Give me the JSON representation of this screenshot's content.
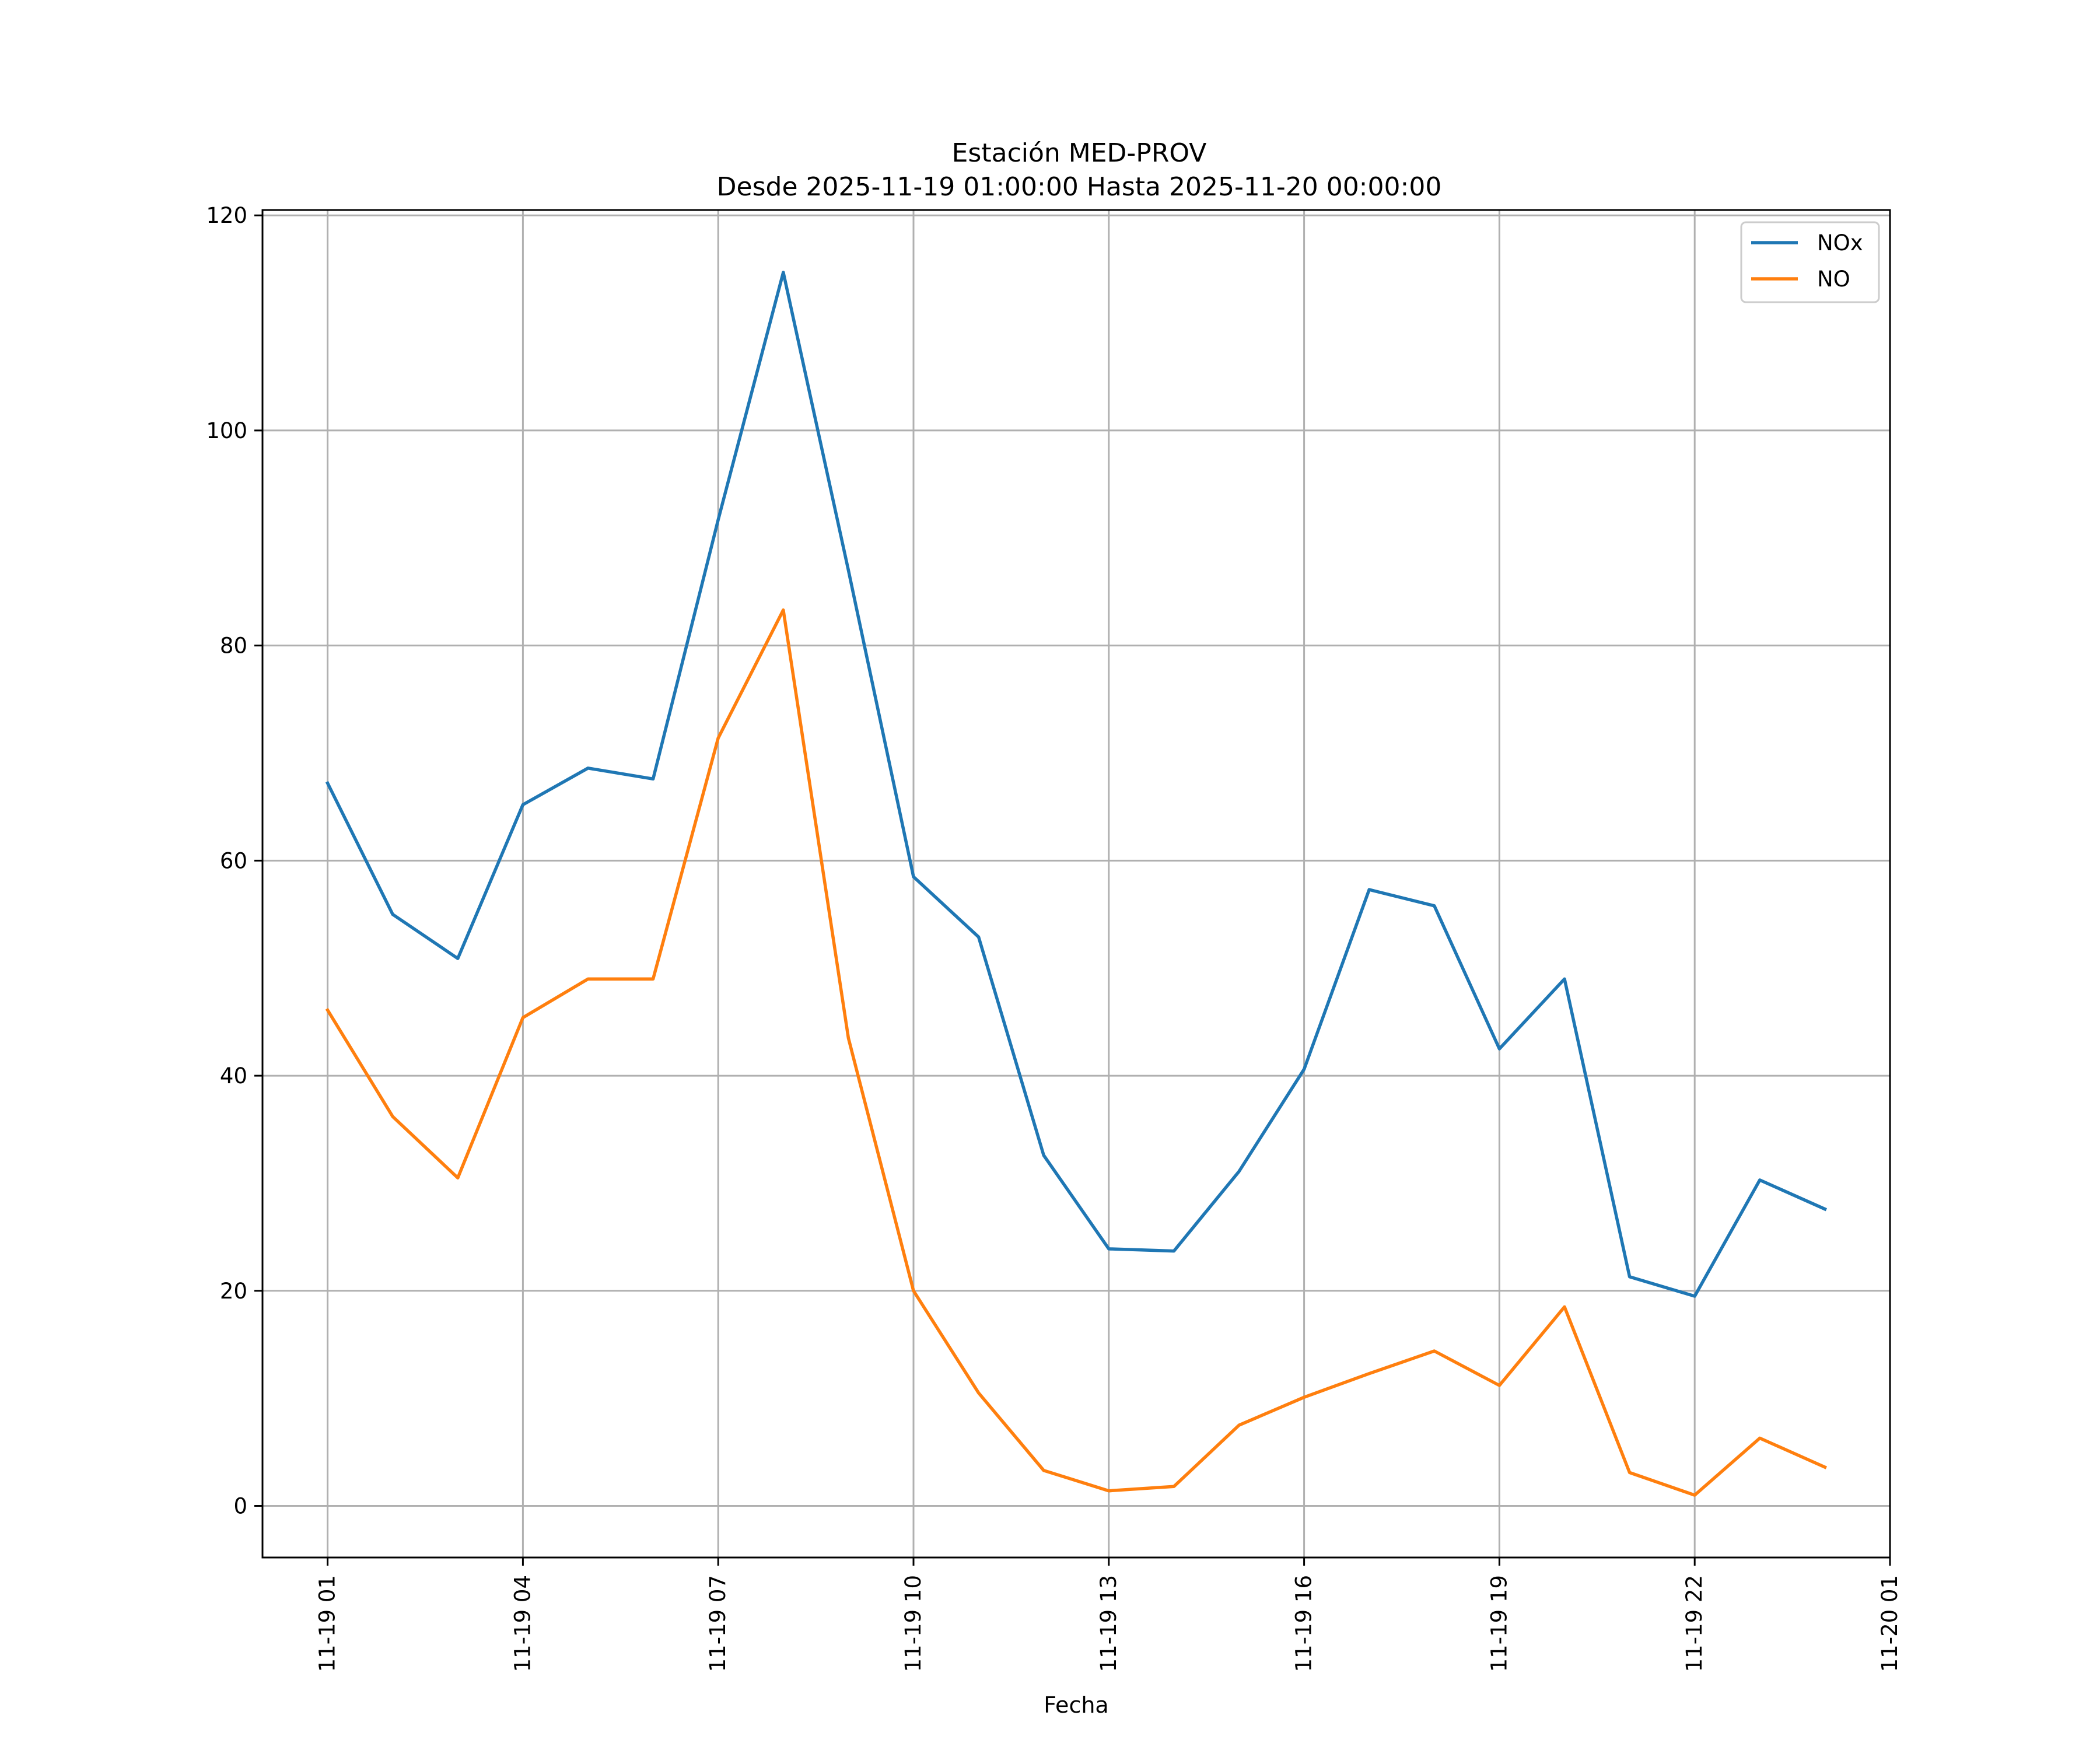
{
  "chart_data": {
    "type": "line",
    "title": [
      "Estación MED-PROV",
      "Desde 2025-11-19 01:00:00 Hasta 2025-11-20 00:00:00"
    ],
    "xlabel": "Fecha",
    "ylabel": "",
    "x": [
      "2025-11-19 01:00",
      "2025-11-19 02:00",
      "2025-11-19 03:00",
      "2025-11-19 04:00",
      "2025-11-19 05:00",
      "2025-11-19 06:00",
      "2025-11-19 07:00",
      "2025-11-19 08:00",
      "2025-11-19 09:00",
      "2025-11-19 10:00",
      "2025-11-19 11:00",
      "2025-11-19 12:00",
      "2025-11-19 13:00",
      "2025-11-19 14:00",
      "2025-11-19 15:00",
      "2025-11-19 16:00",
      "2025-11-19 17:00",
      "2025-11-19 18:00",
      "2025-11-19 19:00",
      "2025-11-19 20:00",
      "2025-11-19 21:00",
      "2025-11-19 22:00",
      "2025-11-19 23:00",
      "2025-11-20 00:00"
    ],
    "series": [
      {
        "name": "NOx",
        "color": "#1f77b4",
        "values": [
          67.2,
          55.0,
          50.9,
          65.2,
          68.6,
          67.6,
          91.7,
          114.7,
          87.0,
          58.5,
          52.9,
          32.6,
          23.9,
          23.7,
          31.1,
          40.6,
          57.3,
          55.8,
          42.5,
          49.0,
          21.3,
          19.5,
          30.3,
          27.6
        ]
      },
      {
        "name": "NO",
        "color": "#ff7f0e",
        "values": [
          46.1,
          36.2,
          30.5,
          45.4,
          49.0,
          49.0,
          71.4,
          83.3,
          43.5,
          20.0,
          10.5,
          3.3,
          1.4,
          1.8,
          7.5,
          10.1,
          12.3,
          14.4,
          11.2,
          18.5,
          3.1,
          1.0,
          6.3,
          3.6
        ]
      }
    ],
    "xlim": [
      "2025-11-19 00:00",
      "2025-11-20 01:00"
    ],
    "xticks": [
      "2025-11-19 01:00",
      "2025-11-19 04:00",
      "2025-11-19 07:00",
      "2025-11-19 10:00",
      "2025-11-19 13:00",
      "2025-11-19 16:00",
      "2025-11-19 19:00",
      "2025-11-19 22:00",
      "2025-11-20 01:00"
    ],
    "xtick_labels": [
      "11-19 01",
      "11-19 04",
      "11-19 07",
      "11-19 10",
      "11-19 13",
      "11-19 16",
      "11-19 19",
      "11-19 22",
      "11-20 01"
    ],
    "ylim": [
      -4.8,
      120.5
    ],
    "yticks": [
      0,
      20,
      40,
      60,
      80,
      100,
      120
    ],
    "ytick_labels": [
      "0",
      "20",
      "40",
      "60",
      "80",
      "100",
      "120"
    ],
    "grid": true,
    "legend_position": "top-right"
  }
}
